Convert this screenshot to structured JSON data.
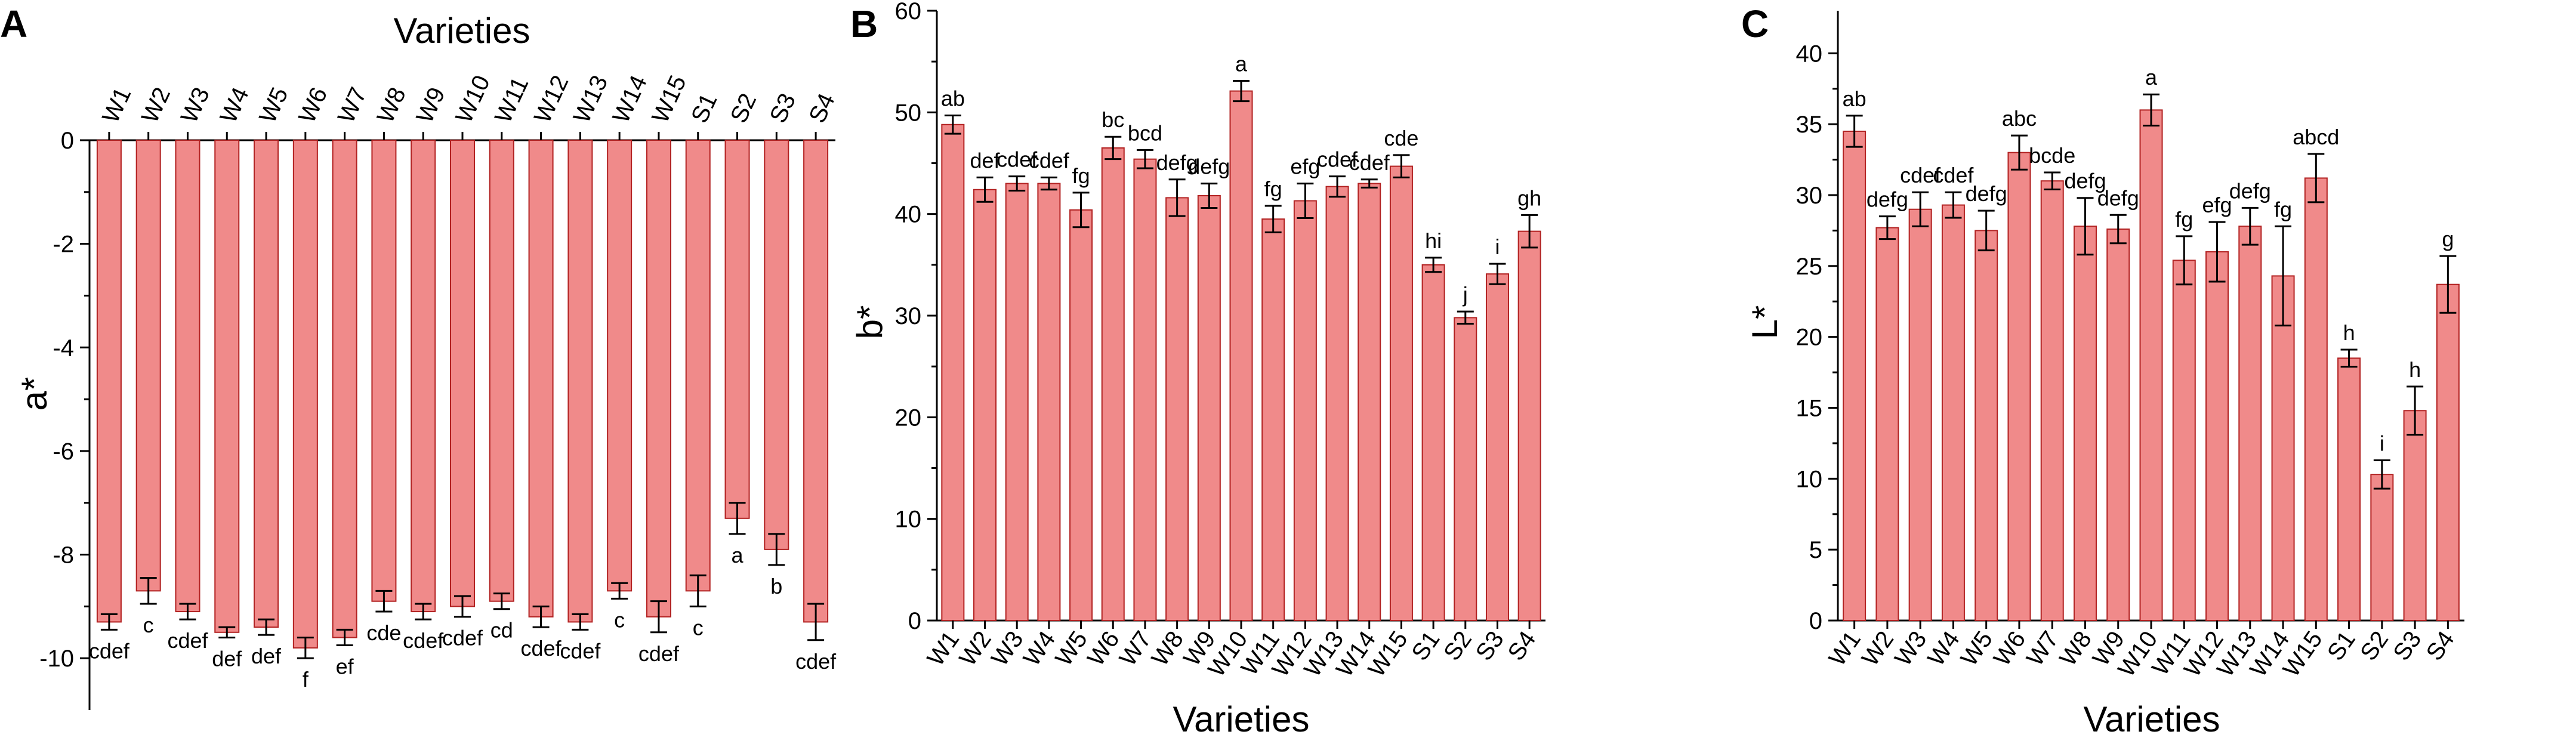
{
  "chart_data": [
    {
      "panel": "A",
      "type": "bar",
      "xlabel": "Varieties",
      "ylabel": "a*",
      "ylim": [
        -11,
        0
      ],
      "yticks": [
        0,
        -2,
        -4,
        -6,
        -8,
        -10
      ],
      "categories": [
        "W1",
        "W2",
        "W3",
        "W4",
        "W5",
        "W6",
        "W7",
        "W8",
        "W9",
        "W10",
        "W11",
        "W12",
        "W13",
        "W14",
        "W15",
        "S1",
        "S2",
        "S3",
        "S4"
      ],
      "values": [
        -9.3,
        -8.7,
        -9.1,
        -9.5,
        -9.4,
        -9.8,
        -9.6,
        -8.9,
        -9.1,
        -9.0,
        -8.9,
        -9.2,
        -9.3,
        -8.7,
        -9.2,
        -8.7,
        -7.3,
        -7.9,
        -9.3
      ],
      "errors": [
        0.15,
        0.25,
        0.15,
        0.1,
        0.15,
        0.2,
        0.15,
        0.2,
        0.15,
        0.2,
        0.15,
        0.2,
        0.15,
        0.15,
        0.3,
        0.3,
        0.3,
        0.3,
        0.35
      ],
      "sig_labels": [
        "cdef",
        "c",
        "cdef",
        "def",
        "def",
        "f",
        "ef",
        "cde",
        "cdef",
        "cdef",
        "cd",
        "cdef",
        "cdef",
        "c",
        "cdef",
        "c",
        "a",
        "b",
        "cdef"
      ],
      "bar_color": "#f08a8a",
      "grid": false
    },
    {
      "panel": "B",
      "type": "bar",
      "xlabel": "Varieties",
      "ylabel": "b*",
      "ylim": [
        0,
        60
      ],
      "yticks": [
        0,
        10,
        20,
        30,
        40,
        50,
        60
      ],
      "categories": [
        "W1",
        "W2",
        "W3",
        "W4",
        "W5",
        "W6",
        "W7",
        "W8",
        "W9",
        "W10",
        "W11",
        "W12",
        "W13",
        "W14",
        "W15",
        "S1",
        "S2",
        "S3",
        "S4"
      ],
      "values": [
        48.8,
        42.4,
        43.0,
        43.0,
        40.4,
        46.5,
        45.4,
        41.6,
        41.8,
        52.1,
        39.5,
        41.3,
        42.7,
        43.0,
        44.7,
        35.0,
        29.8,
        34.1,
        38.3
      ],
      "errors": [
        0.9,
        1.2,
        0.7,
        0.6,
        1.7,
        1.1,
        0.9,
        1.8,
        1.2,
        1.0,
        1.3,
        1.7,
        1.0,
        0.4,
        1.1,
        0.7,
        0.6,
        1.0,
        1.6
      ],
      "sig_labels": [
        "ab",
        "def",
        "cdef",
        "cdef",
        "fg",
        "bc",
        "bcd",
        "defg",
        "defg",
        "a",
        "fg",
        "efg",
        "cdef",
        "cdef",
        "cde",
        "hi",
        "j",
        "i",
        "gh"
      ],
      "bar_color": "#f08a8a",
      "grid": false
    },
    {
      "panel": "C",
      "type": "bar",
      "xlabel": "Varieties",
      "ylabel": "L*",
      "ylim": [
        0,
        43
      ],
      "yticks": [
        0,
        5,
        10,
        15,
        20,
        25,
        30,
        35,
        40
      ],
      "categories": [
        "W1",
        "W2",
        "W3",
        "W4",
        "W5",
        "W6",
        "W7",
        "W8",
        "W9",
        "W10",
        "W11",
        "W12",
        "W13",
        "W14",
        "W15",
        "S1",
        "S2",
        "S3",
        "S4"
      ],
      "values": [
        34.5,
        27.7,
        29.0,
        29.3,
        27.5,
        33.0,
        31.0,
        27.8,
        27.6,
        36.0,
        25.4,
        26.0,
        27.8,
        24.3,
        31.2,
        18.5,
        10.3,
        14.8,
        23.7
      ],
      "errors": [
        1.1,
        0.8,
        1.2,
        0.9,
        1.4,
        1.2,
        0.6,
        2.0,
        1.0,
        1.1,
        1.7,
        2.1,
        1.3,
        3.5,
        1.7,
        0.6,
        1.0,
        1.7,
        2.0
      ],
      "sig_labels": [
        "ab",
        "defg",
        "cdef",
        "cdef",
        "defg",
        "abc",
        "bcde",
        "defg",
        "defg",
        "a",
        "fg",
        "efg",
        "defg",
        "fg",
        "abcd",
        "h",
        "i",
        "h",
        "g"
      ],
      "bar_color": "#f08a8a",
      "grid": false
    }
  ]
}
